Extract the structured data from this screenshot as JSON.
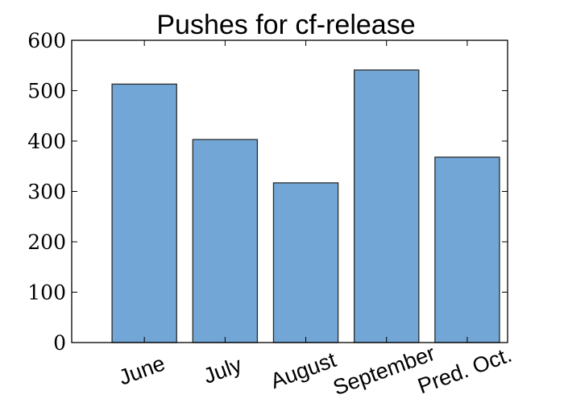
{
  "chart_data": {
    "type": "bar",
    "title": "Pushes for cf-release",
    "xlabel": "",
    "ylabel": "",
    "categories": [
      "June",
      "July",
      "August",
      "September",
      "Pred. Oct."
    ],
    "values": [
      513,
      403,
      317,
      541,
      368
    ],
    "ylim": [
      0,
      600
    ],
    "yticks": [
      0,
      100,
      200,
      300,
      400,
      500,
      600
    ],
    "xtick_rotation_deg": -20,
    "grid": false,
    "legend": "none",
    "colors": {
      "bar_fill": "#72a6d6",
      "bar_edge": "#2b2b2b",
      "axis": "#000000"
    }
  }
}
